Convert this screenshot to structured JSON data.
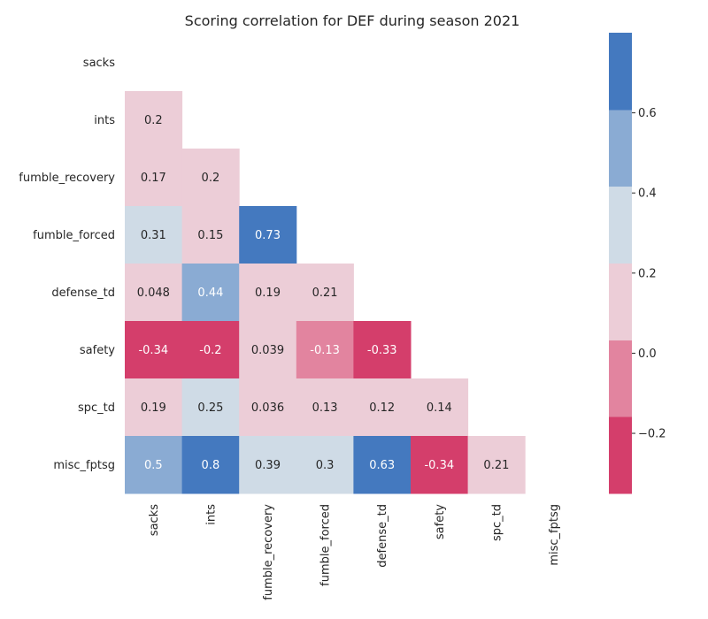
{
  "chart_data": {
    "type": "heatmap",
    "title": "Scoring correlation for DEF during season 2021",
    "variables": [
      "sacks",
      "ints",
      "fumble_recovery",
      "fumble_forced",
      "defense_td",
      "safety",
      "spc_td",
      "misc_fptsg"
    ],
    "mask": "upper-triangle-including-diagonal",
    "rows": [
      {
        "label": "sacks",
        "values": []
      },
      {
        "label": "ints",
        "values": [
          0.2
        ]
      },
      {
        "label": "fumble_recovery",
        "values": [
          0.17,
          0.2
        ]
      },
      {
        "label": "fumble_forced",
        "values": [
          0.31,
          0.15,
          0.73
        ]
      },
      {
        "label": "defense_td",
        "values": [
          0.048,
          0.44,
          0.19,
          0.21
        ]
      },
      {
        "label": "safety",
        "values": [
          -0.34,
          -0.2,
          0.039,
          -0.13,
          -0.33
        ]
      },
      {
        "label": "spc_td",
        "values": [
          0.19,
          0.25,
          0.036,
          0.13,
          0.12,
          0.14
        ]
      },
      {
        "label": "misc_fptsg",
        "values": [
          0.5,
          0.8,
          0.39,
          0.3,
          0.63,
          -0.34,
          0.21
        ]
      }
    ],
    "colorbar": {
      "range": [
        -0.35,
        0.8
      ],
      "ticks": [
        -0.2,
        0.0,
        0.2,
        0.4,
        0.6
      ],
      "tick_labels": [
        "−0.2",
        "0.0",
        "0.2",
        "0.4",
        "0.6"
      ],
      "bins": [
        {
          "from": -0.35,
          "to": -0.158,
          "color": "#d43e6b"
        },
        {
          "from": -0.158,
          "to": 0.033,
          "color": "#e2849f"
        },
        {
          "from": 0.033,
          "to": 0.225,
          "color": "#eccdd7"
        },
        {
          "from": 0.225,
          "to": 0.417,
          "color": "#cfdbe6"
        },
        {
          "from": 0.417,
          "to": 0.608,
          "color": "#8aabd3"
        },
        {
          "from": 0.608,
          "to": 0.8,
          "color": "#4479bf"
        }
      ]
    },
    "light_text_color": "#ffffff",
    "dark_text_color": "#262626",
    "light_text_above": 0.4,
    "light_text_below": -0.1
  }
}
